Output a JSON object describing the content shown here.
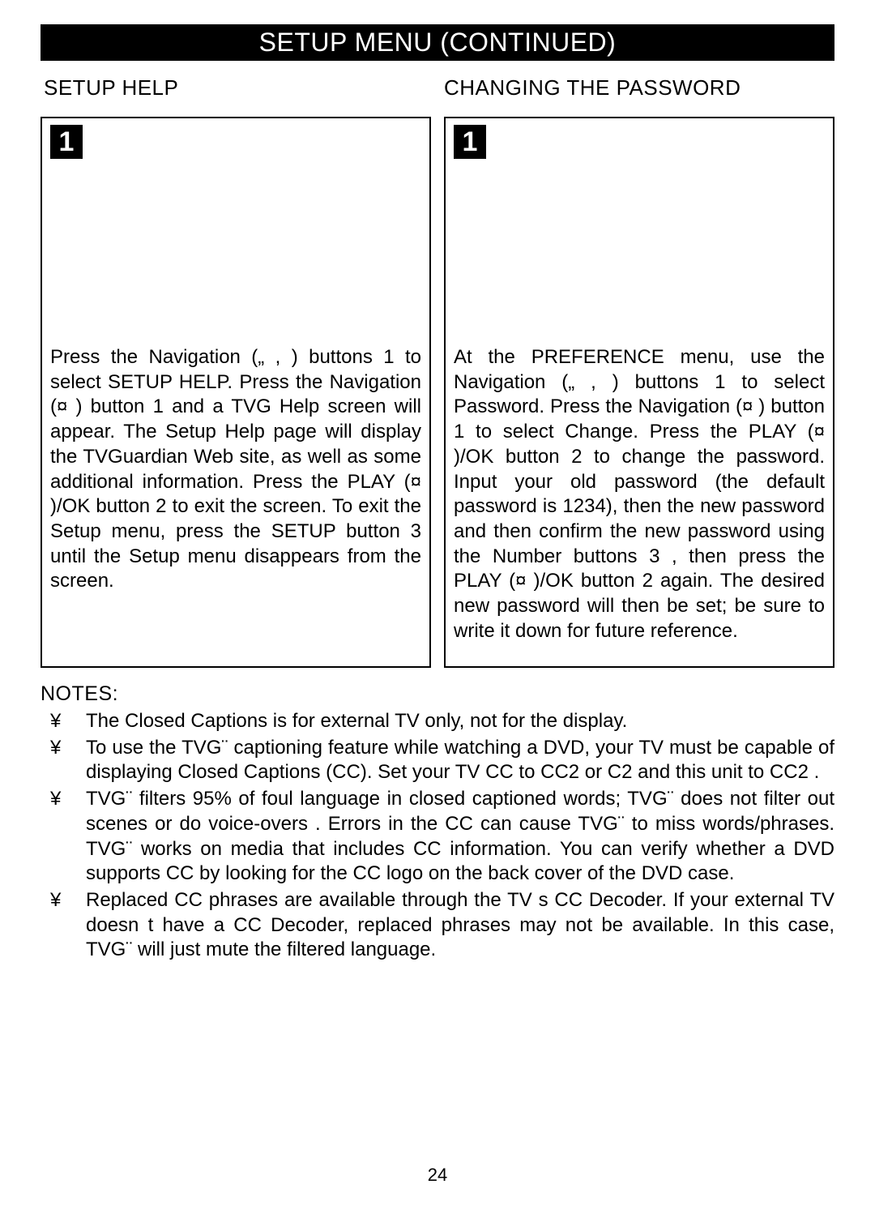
{
  "header": {
    "title": "SETUP MENU (CONTINUED)"
  },
  "left": {
    "heading": "SETUP HELP",
    "step": "1",
    "text": "Press the Navigation („ ,  ) buttons 1  to select SETUP HELP. Press the Navigation (¤ ) button 1  and a TVG Help screen will appear. The Setup Help page will display the TVGuardian Web site, as well as some  additional information. Press the PLAY (¤ )/OK button 2  to exit the screen. To exit the Setup menu, press the SETUP button 3  until the Setup menu disappears from the screen."
  },
  "right": {
    "heading": "CHANGING THE PASSWORD",
    "step": "1",
    "text": "At the PREFERENCE menu, use the Navigation („ ,  ) buttons 1  to select Password. Press the Navigation (¤ ) button 1  to select Change. Press the PLAY (¤ )/OK button 2  to change the password. Input your old password (the default password is 1234), then the new password and then confirm the new password using the Number buttons 3 , then press the  PLAY (¤ )/OK button 2  again. The desired new password will then be set; be sure to write it down for future reference."
  },
  "notes": {
    "heading": "NOTES:",
    "bullet_glyph": "¥",
    "items": [
      "The Closed Captions is for external TV only, not for the display.",
      "To use the TVG¨ captioning feature while watching a DVD, your TV must be capable of displaying Closed Captions (CC). Set your TV CC to  CC2  or  C2  and this unit to  CC2 .",
      " TVG¨ filters 95% of foul language in closed captioned words; TVG¨ does not filter out scenes or do  voice-overs . Errors in the CC can cause TVG¨ to miss words/phrases. TVG¨ works on media that includes CC information. You can verify whether a DVD supports CC by looking for the CC logo on the back cover of the DVD case.",
      " Replaced CC phrases are available through the TV s CC Decoder. If your external TV doesn t have a CC Decoder, replaced phrases may not be available. In this case, TVG¨ will just mute the filtered language."
    ]
  },
  "page_number": "24"
}
